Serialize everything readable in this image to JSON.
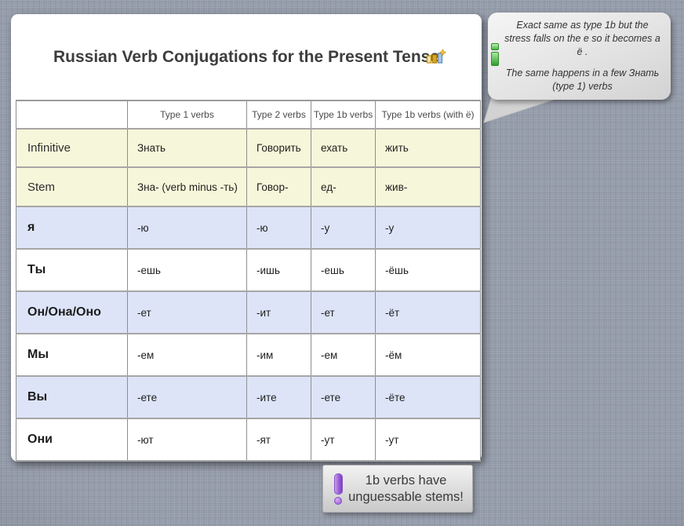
{
  "title": "Russian Verb Conjugations for the Present Tense",
  "table": {
    "headers": [
      "",
      "Type 1 verbs",
      "Type 2 verbs",
      "Type 1b verbs",
      "Type 1b verbs (with ё)"
    ],
    "rows": [
      {
        "label": "Infinitive",
        "bold": false,
        "tone": "cream",
        "cells": [
          "Знать",
          "Говорить",
          "ехать",
          "жить"
        ]
      },
      {
        "label": "Stem",
        "bold": false,
        "tone": "cream",
        "cells": [
          "Зна- (verb minus -ть)",
          "Говор-",
          "ед-",
          "жив-"
        ]
      },
      {
        "label": "я",
        "bold": true,
        "tone": "blue",
        "cells": [
          "-ю",
          "-ю",
          "-у",
          "-у"
        ]
      },
      {
        "label": "Ты",
        "bold": true,
        "tone": "white",
        "cells": [
          "-ешь",
          "-ишь",
          "-ешь",
          "-ёшь"
        ]
      },
      {
        "label": "Он/Она/Оно",
        "bold": true,
        "tone": "blue",
        "cells": [
          "-ет",
          "-ит",
          "-ет",
          "-ёт"
        ]
      },
      {
        "label": "Мы",
        "bold": true,
        "tone": "white",
        "cells": [
          "-ем",
          "-им",
          "-ем",
          "-ём"
        ]
      },
      {
        "label": "Вы",
        "bold": true,
        "tone": "blue",
        "cells": [
          "-ете",
          "-ите",
          "-ете",
          "-ёте"
        ]
      },
      {
        "label": "Они",
        "bold": true,
        "tone": "white",
        "cells": [
          "-ют",
          "-ят",
          "-ут",
          "-ут"
        ]
      }
    ]
  },
  "info_bubble": {
    "line1": "Exact same as type 1b but the stress falls on the e so it becomes a ё .",
    "line2": "The same happens in a few Знать (type 1) verbs"
  },
  "warning_callout": {
    "text": "1b verbs have unguessable stems!"
  },
  "icons": {
    "title_icon": "bar-chart-with-star",
    "bubble_icon": "green-info-i",
    "callout_icon": "purple-exclamation"
  },
  "colors": {
    "background": "#959caa",
    "card": "#ffffff",
    "row_cream": "#f6f6da",
    "row_blue": "#dde4f8",
    "table_border": "#8f8f8f",
    "bubble_grey": "#e3e3e3",
    "info_green": "#2f9e2f",
    "warning_purple": "#9a5fd6",
    "title_text": "#3d3d3d"
  }
}
